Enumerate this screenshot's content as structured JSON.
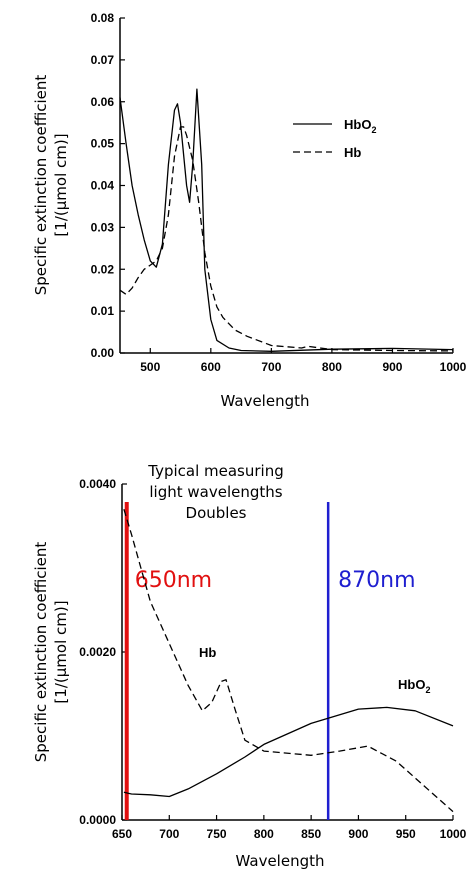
{
  "chart_data": [
    {
      "type": "line",
      "title": "",
      "xlabel": "Wavelength",
      "ylabel_line1": "Specific extinction coefficient",
      "ylabel_line2": "[1/(μmol cm)]",
      "xlim": [
        450,
        1000
      ],
      "ylim": [
        0,
        0.08
      ],
      "x_ticks": [
        "500",
        "600",
        "700",
        "800",
        "900",
        "1000"
      ],
      "y_ticks": [
        "0.00",
        "0.01",
        "0.02",
        "0.03",
        "0.04",
        "0.05",
        "0.06",
        "0.07",
        "0.08"
      ],
      "legend": {
        "placement": "right",
        "entries": [
          {
            "label": "HbO",
            "sub": "2",
            "style": "solid"
          },
          {
            "label": "Hb",
            "sub": "",
            "style": "dashed"
          }
        ]
      },
      "series": [
        {
          "name": "HbO2",
          "style": "solid",
          "x": [
            450,
            460,
            470,
            480,
            490,
            500,
            510,
            520,
            530,
            540,
            545,
            550,
            560,
            565,
            570,
            577,
            585,
            590,
            600,
            610,
            630,
            650,
            700,
            800,
            900,
            1000
          ],
          "y": [
            0.061,
            0.05,
            0.04,
            0.033,
            0.027,
            0.022,
            0.0205,
            0.026,
            0.045,
            0.058,
            0.0595,
            0.055,
            0.04,
            0.036,
            0.045,
            0.063,
            0.045,
            0.02,
            0.008,
            0.003,
            0.0012,
            0.0006,
            0.0004,
            0.0009,
            0.0011,
            0.0008
          ]
        },
        {
          "name": "Hb",
          "style": "dashed",
          "x": [
            450,
            460,
            470,
            480,
            490,
            500,
            510,
            520,
            530,
            540,
            550,
            555,
            560,
            570,
            580,
            590,
            600,
            610,
            620,
            640,
            660,
            700,
            750,
            760,
            800,
            900,
            1000
          ],
          "y": [
            0.015,
            0.014,
            0.0155,
            0.018,
            0.02,
            0.021,
            0.022,
            0.025,
            0.033,
            0.047,
            0.054,
            0.054,
            0.052,
            0.046,
            0.036,
            0.024,
            0.016,
            0.011,
            0.0085,
            0.0055,
            0.004,
            0.0018,
            0.0012,
            0.0016,
            0.0008,
            0.0006,
            0.0005
          ]
        }
      ]
    },
    {
      "type": "line",
      "title": "",
      "xlabel": "Wavelength",
      "ylabel_line1": "Specific extinction coefficient",
      "ylabel_line2": "[1/(μmol cm)]",
      "xlim": [
        650,
        1000
      ],
      "ylim": [
        0,
        0.004
      ],
      "x_ticks": [
        "650",
        "700",
        "750",
        "800",
        "850",
        "900",
        "950",
        "1000"
      ],
      "y_ticks": [
        "0.0000",
        "0.0020",
        "0.0040"
      ],
      "series_labels": [
        {
          "text": "Hb",
          "sub": ""
        },
        {
          "text": "HbO",
          "sub": "2"
        }
      ],
      "annotation_lines": [
        "Typical measuring",
        "light wavelengths",
        "Doubles"
      ],
      "markers": [
        {
          "label": "650nm",
          "x": 655,
          "color": "#e11010"
        },
        {
          "label": "870nm",
          "x": 868,
          "color": "#1f1fd0"
        }
      ],
      "series": [
        {
          "name": "HbO2",
          "style": "solid",
          "x": [
            652,
            660,
            680,
            700,
            720,
            750,
            780,
            800,
            850,
            900,
            930,
            960,
            1000
          ],
          "y": [
            0.00033,
            0.00031,
            0.0003,
            0.00028,
            0.00037,
            0.00055,
            0.00075,
            0.0009,
            0.00115,
            0.00132,
            0.00134,
            0.0013,
            0.00112
          ]
        },
        {
          "name": "Hb",
          "style": "dashed",
          "x": [
            652,
            660,
            670,
            680,
            700,
            720,
            735,
            745,
            755,
            760,
            770,
            780,
            800,
            850,
            880,
            910,
            940,
            970,
            1000
          ],
          "y": [
            0.0037,
            0.0034,
            0.003,
            0.0026,
            0.0021,
            0.0016,
            0.0013,
            0.0014,
            0.00165,
            0.00167,
            0.0013,
            0.00095,
            0.00082,
            0.00077,
            0.00082,
            0.00088,
            0.0007,
            0.0004,
            0.0001
          ]
        }
      ]
    }
  ]
}
